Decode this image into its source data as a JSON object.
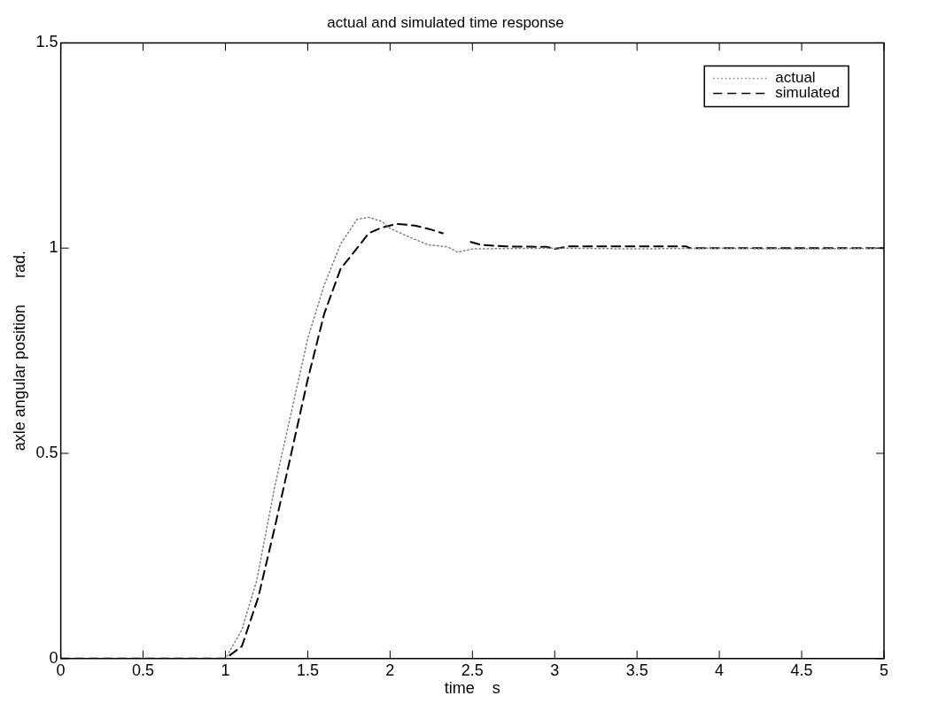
{
  "chart_data": {
    "type": "line",
    "title": "actual and simulated time response",
    "xlabel": "time    s",
    "ylabel": "axle angular position      rad.",
    "xlim": [
      0,
      5
    ],
    "ylim": [
      0,
      1.5
    ],
    "xticks": [
      0,
      0.5,
      1,
      1.5,
      2,
      2.5,
      3,
      3.5,
      4,
      4.5,
      5
    ],
    "yticks": [
      0,
      0.5,
      1,
      1.5
    ],
    "grid": false,
    "legend": "top right",
    "marker": "none",
    "series": [
      {
        "name": "actual",
        "color": "#808080",
        "line_style": "dotted",
        "x": [
          0,
          1.0,
          1.1,
          1.19,
          1.3,
          1.4,
          1.5,
          1.6,
          1.7,
          1.8,
          1.87,
          1.95,
          2.0,
          2.1,
          2.23,
          2.35,
          2.41,
          2.5,
          3.0,
          3.5,
          4.0,
          4.5,
          5.0
        ],
        "values": [
          0,
          0,
          0.07,
          0.19,
          0.42,
          0.6,
          0.78,
          0.91,
          1.01,
          1.07,
          1.075,
          1.065,
          1.048,
          1.03,
          1.008,
          1.003,
          0.99,
          0.998,
          1.0,
          0.998,
          1.0,
          0.998,
          1.0
        ]
      },
      {
        "name": "simulated",
        "color": "#000000",
        "line_style": "dashed",
        "x": [
          0,
          1.0,
          1.1,
          1.2,
          1.3,
          1.4,
          1.5,
          1.6,
          1.7,
          1.8,
          1.87,
          1.95,
          2.04,
          2.15,
          2.25,
          2.32,
          2.4,
          2.49,
          2.55,
          2.7,
          2.95,
          3.0,
          3.08,
          3.8,
          3.82,
          5.0
        ],
        "values": [
          0,
          0,
          0.03,
          0.15,
          0.32,
          0.5,
          0.68,
          0.84,
          0.95,
          1.0,
          1.036,
          1.05,
          1.059,
          1.055,
          1.045,
          1.036,
          null,
          1.015,
          1.008,
          1.004,
          1.003,
          0.998,
          1.004,
          1.004,
          1.0,
          1.0
        ]
      }
    ]
  }
}
